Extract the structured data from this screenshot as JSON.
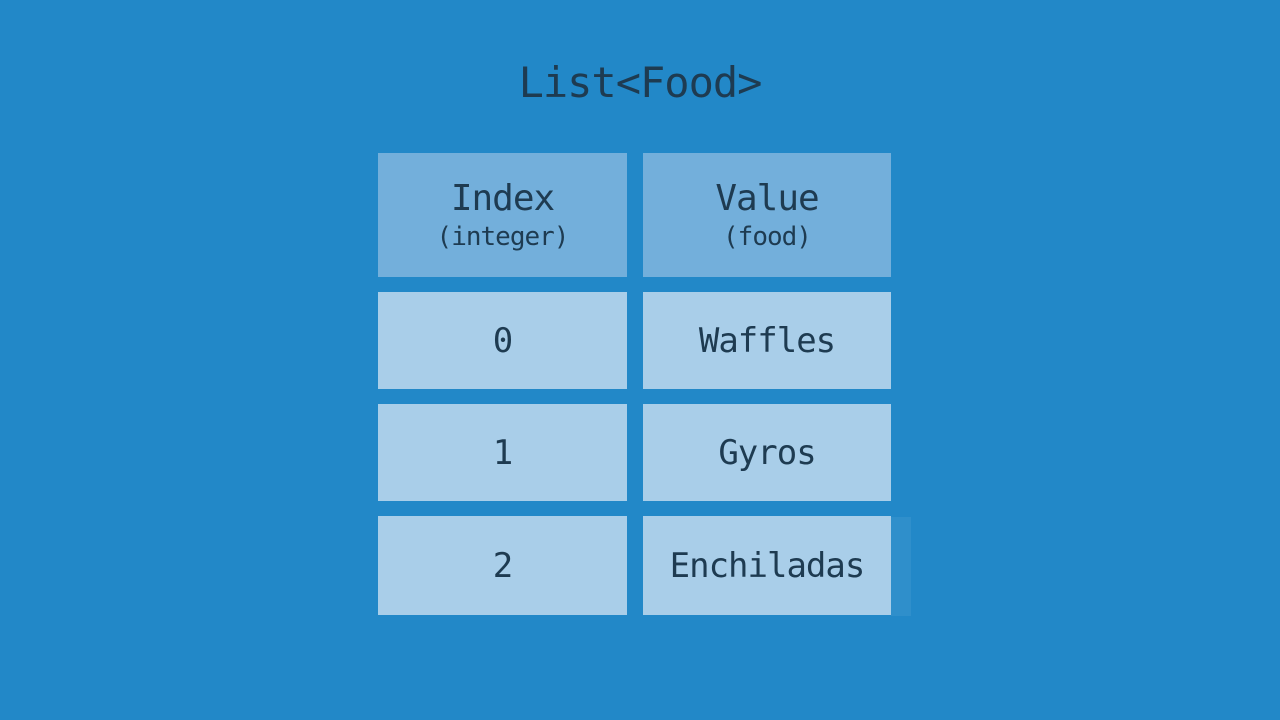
{
  "title": "List<Food>",
  "colors": {
    "background": "#2288c8",
    "header_cell": "#73afdb",
    "data_cell": "#a9cee9",
    "text": "#1e3b51"
  },
  "table": {
    "columns": [
      {
        "header": "Index",
        "subheader": "(integer)"
      },
      {
        "header": "Value",
        "subheader": "(food)"
      }
    ],
    "rows": [
      {
        "index": "0",
        "value": "Waffles"
      },
      {
        "index": "1",
        "value": "Gyros"
      },
      {
        "index": "2",
        "value": "Enchiladas"
      }
    ]
  }
}
